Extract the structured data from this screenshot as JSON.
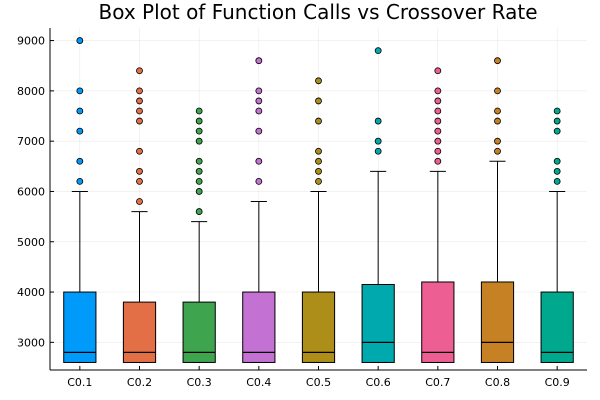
{
  "chart_data": {
    "type": "box",
    "title": "Box Plot of Function Calls vs Crossover Rate",
    "xlabel": "",
    "ylabel": "",
    "ylim": [
      2450,
      9250
    ],
    "yticks": [
      3000,
      4000,
      5000,
      6000,
      7000,
      8000,
      9000
    ],
    "ytick_labels": [
      "3000",
      "4000",
      "5000",
      "6000",
      "7000",
      "8000",
      "9000"
    ],
    "grid": true,
    "legend": "none",
    "categories": [
      "C0.1",
      "C0.2",
      "C0.3",
      "C0.4",
      "C0.5",
      "C0.6",
      "C0.7",
      "C0.8",
      "C0.9"
    ],
    "series": [
      {
        "color": "#009AFA",
        "q1": 2600,
        "median": 2800,
        "q3": 4000,
        "whisker_low": 2600,
        "whisker_high": 6000,
        "outliers": [
          6200,
          6600,
          7200,
          7600,
          8000,
          9000
        ]
      },
      {
        "color": "#E36F47",
        "q1": 2600,
        "median": 2800,
        "q3": 3800,
        "whisker_low": 2600,
        "whisker_high": 5600,
        "outliers": [
          5800,
          6200,
          6400,
          6800,
          7400,
          7600,
          7800,
          8000,
          8400
        ]
      },
      {
        "color": "#3EA44E",
        "q1": 2600,
        "median": 2800,
        "q3": 3800,
        "whisker_low": 2600,
        "whisker_high": 5400,
        "outliers": [
          5600,
          6000,
          6200,
          6400,
          6600,
          7000,
          7200,
          7400,
          7600
        ]
      },
      {
        "color": "#C371D2",
        "q1": 2600,
        "median": 2800,
        "q3": 4000,
        "whisker_low": 2600,
        "whisker_high": 5800,
        "outliers": [
          6200,
          6600,
          7200,
          7600,
          7800,
          8000,
          8600
        ]
      },
      {
        "color": "#AC8E18",
        "q1": 2600,
        "median": 2800,
        "q3": 4000,
        "whisker_low": 2600,
        "whisker_high": 6000,
        "outliers": [
          6200,
          6400,
          6600,
          6800,
          7400,
          7800,
          8200
        ]
      },
      {
        "color": "#00A9AD",
        "q1": 2600,
        "median": 3000,
        "q3": 4150,
        "whisker_low": 2600,
        "whisker_high": 6400,
        "outliers": [
          6800,
          7000,
          7400,
          8800
        ]
      },
      {
        "color": "#ED5E93",
        "q1": 2600,
        "median": 2800,
        "q3": 4200,
        "whisker_low": 2600,
        "whisker_high": 6400,
        "outliers": [
          6600,
          6800,
          7000,
          7200,
          7400,
          7600,
          7800,
          8000,
          8400
        ]
      },
      {
        "color": "#C68125",
        "q1": 2600,
        "median": 3000,
        "q3": 4200,
        "whisker_low": 2600,
        "whisker_high": 6600,
        "outliers": [
          6800,
          7000,
          7400,
          7600,
          8000,
          8600
        ]
      },
      {
        "color": "#00A98D",
        "q1": 2600,
        "median": 2800,
        "q3": 4000,
        "whisker_low": 2600,
        "whisker_high": 6000,
        "outliers": [
          6200,
          6400,
          6600,
          7200,
          7400,
          7600
        ]
      }
    ]
  }
}
